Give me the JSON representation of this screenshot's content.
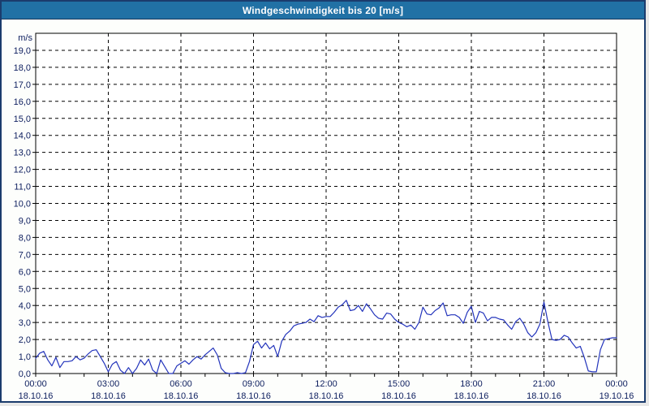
{
  "window": {
    "title": "Windgeschwindigkeit bis 20 [m/s]"
  },
  "colors": {
    "titlebar_bg": "#2171a5",
    "window_border": "#1b3c6d",
    "series_line": "#2233bb",
    "axis_text": "#0f2060",
    "grid_line": "#000000",
    "plot_border": "#000000",
    "plot_bg": "#ffffff"
  },
  "chart_data": {
    "type": "line",
    "title": "Windgeschwindigkeit bis 20 [m/s]",
    "ylabel": "m/s",
    "xlabel": "",
    "ylim": [
      0,
      20
    ],
    "ytick_step": 1.0,
    "ytick_labels": [
      "0,0",
      "1,0",
      "2,0",
      "3,0",
      "4,0",
      "5,0",
      "6,0",
      "7,0",
      "8,0",
      "9,0",
      "10,0",
      "11,0",
      "12,0",
      "13,0",
      "14,0",
      "15,0",
      "16,0",
      "17,0",
      "18,0",
      "19,0"
    ],
    "x_hours": [
      0,
      24
    ],
    "minor_xtick_every_hours": 1,
    "grid": "dashed",
    "legend_position": "none",
    "xticks": [
      {
        "hour": 0,
        "time": "00:00",
        "date": "18.10.16"
      },
      {
        "hour": 3,
        "time": "03:00",
        "date": "18.10.16"
      },
      {
        "hour": 6,
        "time": "06:00",
        "date": "18.10.16"
      },
      {
        "hour": 9,
        "time": "09:00",
        "date": "18.10.16"
      },
      {
        "hour": 12,
        "time": "12:00",
        "date": "18.10.16"
      },
      {
        "hour": 15,
        "time": "15:00",
        "date": "18.10.16"
      },
      {
        "hour": 18,
        "time": "18:00",
        "date": "18.10.16"
      },
      {
        "hour": 21,
        "time": "21:00",
        "date": "18.10.16"
      },
      {
        "hour": 24,
        "time": "00:00",
        "date": "19.10.16"
      }
    ],
    "series": [
      {
        "name": "Windgeschwindigkeit",
        "unit": "m/s",
        "start_hour": 0,
        "sample_interval_minutes": 10,
        "values": [
          0.9,
          1.2,
          1.3,
          0.8,
          0.45,
          0.95,
          0.35,
          0.7,
          0.7,
          0.75,
          1.0,
          0.8,
          0.9,
          1.15,
          1.35,
          1.4,
          1.0,
          0.6,
          0.1,
          0.55,
          0.7,
          0.2,
          0.0,
          0.35,
          0.0,
          0.3,
          0.8,
          0.5,
          0.85,
          0.2,
          0.0,
          0.8,
          0.4,
          0.0,
          0.0,
          0.45,
          0.6,
          0.75,
          0.55,
          0.8,
          1.0,
          0.85,
          1.1,
          1.3,
          1.5,
          1.1,
          0.3,
          0.05,
          0.0,
          0.0,
          0.05,
          0.0,
          0.05,
          0.7,
          1.7,
          1.9,
          1.5,
          1.8,
          1.45,
          1.65,
          1.0,
          1.9,
          2.3,
          2.5,
          2.8,
          2.9,
          2.95,
          3.0,
          3.2,
          3.05,
          3.4,
          3.3,
          3.35,
          3.35,
          3.6,
          3.9,
          4.05,
          4.3,
          3.7,
          3.75,
          4.0,
          3.65,
          4.1,
          3.8,
          3.45,
          3.25,
          3.2,
          3.55,
          3.5,
          3.2,
          3.0,
          2.9,
          2.75,
          2.85,
          2.6,
          3.0,
          3.9,
          3.5,
          3.45,
          3.7,
          3.85,
          4.15,
          3.4,
          3.45,
          3.45,
          3.3,
          2.95,
          3.6,
          3.95,
          3.0,
          3.65,
          3.55,
          3.1,
          3.3,
          3.3,
          3.2,
          3.15,
          2.85,
          2.6,
          3.05,
          3.25,
          2.9,
          2.4,
          2.15,
          2.4,
          2.9,
          4.2,
          3.0,
          2.0,
          1.95,
          2.0,
          2.25,
          2.15,
          1.8,
          1.5,
          1.6,
          0.95,
          0.15,
          0.1,
          0.1,
          1.4,
          2.0,
          2.05,
          2.1,
          2.1
        ]
      }
    ]
  }
}
